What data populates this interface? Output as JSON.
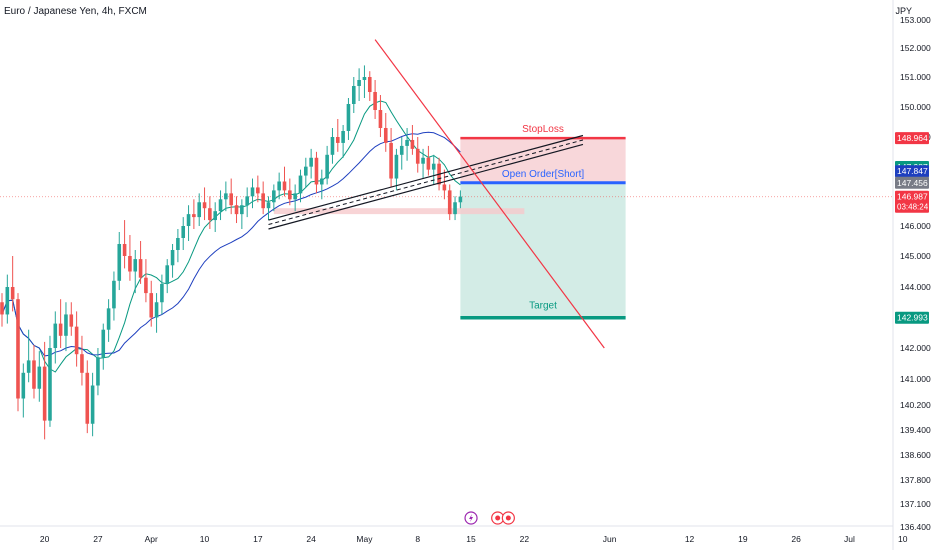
{
  "header": {
    "symbol_title": "Euro / Japanese Yen, 4h, FXCM",
    "currency": "JPY"
  },
  "colors": {
    "up": "#26a69a",
    "down": "#ef5350",
    "sma_fast": "#089981",
    "sma_slow": "#1e3fbf",
    "stop_zone": "#f8d7da",
    "target_zone": "#d3ece6",
    "entry": "#2962ff",
    "stop": "#f23645",
    "target": "#089981",
    "trendline": "#f23645",
    "support_zone": "#f6c9cc"
  },
  "chart_data": {
    "type": "candlestick",
    "symbol": "EUR/JPY",
    "timeframe": "4h",
    "y_axis": {
      "min": 136.4,
      "max": 153.0,
      "ticks": [
        {
          "v": 153.0,
          "label": "153.000"
        },
        {
          "v": 152.0,
          "label": "152.000"
        },
        {
          "v": 151.0,
          "label": "151.000"
        },
        {
          "v": 150.0,
          "label": "150.000"
        },
        {
          "v": 149.0,
          "label": "149.000"
        },
        {
          "v": 146.0,
          "label": "146.000"
        },
        {
          "v": 145.0,
          "label": "145.000"
        },
        {
          "v": 144.0,
          "label": "144.000"
        },
        {
          "v": 142.0,
          "label": "142.000"
        },
        {
          "v": 141.0,
          "label": "141.000"
        },
        {
          "v": 140.2,
          "label": "140.200"
        },
        {
          "v": 139.4,
          "label": "139.400"
        },
        {
          "v": 138.6,
          "label": "138.600"
        },
        {
          "v": 137.8,
          "label": "137.800"
        },
        {
          "v": 137.1,
          "label": "137.100"
        },
        {
          "v": 136.4,
          "label": "136.400"
        }
      ]
    },
    "x_axis": {
      "labels": [
        {
          "i": 8,
          "label": "20"
        },
        {
          "i": 18,
          "label": "27"
        },
        {
          "i": 28,
          "label": "Apr"
        },
        {
          "i": 38,
          "label": "10"
        },
        {
          "i": 48,
          "label": "17"
        },
        {
          "i": 58,
          "label": "24"
        },
        {
          "i": 68,
          "label": "May"
        },
        {
          "i": 78,
          "label": "8"
        },
        {
          "i": 88,
          "label": "15"
        },
        {
          "i": 98,
          "label": "22"
        },
        {
          "i": 114,
          "label": "Jun"
        },
        {
          "i": 129,
          "label": "12"
        },
        {
          "i": 139,
          "label": "19"
        },
        {
          "i": 149,
          "label": "26"
        },
        {
          "i": 159,
          "label": "Jul"
        },
        {
          "i": 169,
          "label": "10"
        }
      ]
    },
    "price_badges": [
      {
        "v": 148.964,
        "label": "148.964",
        "color": "#f23645"
      },
      {
        "v": 147.987,
        "label": "147.987",
        "color": "#089981"
      },
      {
        "v": 147.847,
        "label": "147.847",
        "color": "#1e3fbf"
      },
      {
        "v": 147.456,
        "label": "147.456",
        "color": "#787b86"
      },
      {
        "v": 146.987,
        "label": "146.987",
        "sub": "03:48:24",
        "color": "#f23645"
      },
      {
        "v": 142.993,
        "label": "142.993",
        "color": "#089981"
      }
    ],
    "position": {
      "direction": "short",
      "entry": 147.456,
      "stop": 148.964,
      "target": 142.993,
      "start_i": 86,
      "end_i": 117,
      "labels": {
        "stop": "StopLoss",
        "entry": "Open Order[Short]",
        "target": "Target"
      }
    },
    "close_line": 146.987,
    "downtrend_line": {
      "from": {
        "i": 70,
        "v": 152.3
      },
      "to": {
        "i": 113,
        "v": 142.0
      }
    },
    "rising_channel": {
      "upper": {
        "from": {
          "i": 50,
          "v": 146.2
        },
        "to": {
          "i": 109,
          "v": 149.05
        }
      },
      "lower": {
        "from": {
          "i": 50,
          "v": 145.9
        },
        "to": {
          "i": 109,
          "v": 148.75
        }
      }
    },
    "support_zone": {
      "from_i": 51,
      "to_i": 98,
      "top": 146.6,
      "bottom": 146.4
    },
    "event_icons": [
      {
        "i": 88,
        "icon": "lightning-icon"
      },
      {
        "i": 93,
        "icon": "flag-icon"
      },
      {
        "i": 95,
        "icon": "flag-icon"
      }
    ],
    "ohlc": [
      [
        143.5,
        143.8,
        142.7,
        143.1
      ],
      [
        143.1,
        144.4,
        142.8,
        144.0
      ],
      [
        144.0,
        145.0,
        143.2,
        143.6
      ],
      [
        143.6,
        143.8,
        140.0,
        140.4
      ],
      [
        140.4,
        141.5,
        139.8,
        141.2
      ],
      [
        141.2,
        142.6,
        140.9,
        141.6
      ],
      [
        141.6,
        142.1,
        140.4,
        140.7
      ],
      [
        140.7,
        141.9,
        140.3,
        141.4
      ],
      [
        141.4,
        142.2,
        139.1,
        139.7
      ],
      [
        139.7,
        142.4,
        139.5,
        142.0
      ],
      [
        142.0,
        143.2,
        141.5,
        142.8
      ],
      [
        142.8,
        143.6,
        142.0,
        142.4
      ],
      [
        142.4,
        143.5,
        141.9,
        143.1
      ],
      [
        143.1,
        143.5,
        142.4,
        142.7
      ],
      [
        142.7,
        143.2,
        141.4,
        141.8
      ],
      [
        141.8,
        142.4,
        140.8,
        141.2
      ],
      [
        141.2,
        141.6,
        139.3,
        139.6
      ],
      [
        139.6,
        141.2,
        139.2,
        140.8
      ],
      [
        140.8,
        142.0,
        140.5,
        141.7
      ],
      [
        141.7,
        142.8,
        141.3,
        142.6
      ],
      [
        142.6,
        143.6,
        142.2,
        143.3
      ],
      [
        143.3,
        144.5,
        142.9,
        144.2
      ],
      [
        144.2,
        145.8,
        143.9,
        145.4
      ],
      [
        145.4,
        146.2,
        144.6,
        145.0
      ],
      [
        145.0,
        145.7,
        144.2,
        144.5
      ],
      [
        144.5,
        145.2,
        143.8,
        144.9
      ],
      [
        144.9,
        145.5,
        144.1,
        144.3
      ],
      [
        144.3,
        144.9,
        143.5,
        143.8
      ],
      [
        143.8,
        144.2,
        142.7,
        143.0
      ],
      [
        143.0,
        143.8,
        142.5,
        143.5
      ],
      [
        143.5,
        144.4,
        143.1,
        144.1
      ],
      [
        144.1,
        144.9,
        143.8,
        144.7
      ],
      [
        144.7,
        145.4,
        144.3,
        145.2
      ],
      [
        145.2,
        145.9,
        144.8,
        145.6
      ],
      [
        145.6,
        146.3,
        145.2,
        146.0
      ],
      [
        146.0,
        146.7,
        145.5,
        146.4
      ],
      [
        146.4,
        146.9,
        145.9,
        146.3
      ],
      [
        146.3,
        147.1,
        146.0,
        146.8
      ],
      [
        146.8,
        147.3,
        146.2,
        146.6
      ],
      [
        146.6,
        147.0,
        145.9,
        146.2
      ],
      [
        146.2,
        146.8,
        145.8,
        146.5
      ],
      [
        146.5,
        147.2,
        146.2,
        146.9
      ],
      [
        146.9,
        147.5,
        146.5,
        147.1
      ],
      [
        147.1,
        147.6,
        146.4,
        146.7
      ],
      [
        146.7,
        147.0,
        146.1,
        146.4
      ],
      [
        146.4,
        146.9,
        145.9,
        146.7
      ],
      [
        146.7,
        147.3,
        146.3,
        147.0
      ],
      [
        147.0,
        147.6,
        146.6,
        147.3
      ],
      [
        147.3,
        147.7,
        146.8,
        147.1
      ],
      [
        147.1,
        147.5,
        146.4,
        146.6
      ],
      [
        146.6,
        147.0,
        146.2,
        146.8
      ],
      [
        146.8,
        147.4,
        146.5,
        147.2
      ],
      [
        147.2,
        147.8,
        146.9,
        147.5
      ],
      [
        147.5,
        148.0,
        147.0,
        147.2
      ],
      [
        147.2,
        147.6,
        146.7,
        146.9
      ],
      [
        146.9,
        147.4,
        146.5,
        147.1
      ],
      [
        147.1,
        147.9,
        146.8,
        147.7
      ],
      [
        147.7,
        148.3,
        147.3,
        148.0
      ],
      [
        148.0,
        148.6,
        147.6,
        148.3
      ],
      [
        148.3,
        148.5,
        147.1,
        147.4
      ],
      [
        147.4,
        147.9,
        146.9,
        147.6
      ],
      [
        147.6,
        148.7,
        147.4,
        148.4
      ],
      [
        148.4,
        149.3,
        148.1,
        149.0
      ],
      [
        149.0,
        149.6,
        148.5,
        148.8
      ],
      [
        148.8,
        149.4,
        148.3,
        149.2
      ],
      [
        149.2,
        150.3,
        148.9,
        150.1
      ],
      [
        150.1,
        151.0,
        149.8,
        150.7
      ],
      [
        150.7,
        151.3,
        150.2,
        150.9
      ],
      [
        150.9,
        151.4,
        150.3,
        151.0
      ],
      [
        151.0,
        151.2,
        150.2,
        150.5
      ],
      [
        150.5,
        150.9,
        149.6,
        149.9
      ],
      [
        149.9,
        150.4,
        149.0,
        149.3
      ],
      [
        149.3,
        149.8,
        148.5,
        148.8
      ],
      [
        148.8,
        149.3,
        147.3,
        147.6
      ],
      [
        147.6,
        148.6,
        147.2,
        148.4
      ],
      [
        148.4,
        149.0,
        147.9,
        148.7
      ],
      [
        148.7,
        149.3,
        148.2,
        148.9
      ],
      [
        148.9,
        149.4,
        148.4,
        148.6
      ],
      [
        148.6,
        149.0,
        147.8,
        148.1
      ],
      [
        148.1,
        148.6,
        147.6,
        148.3
      ],
      [
        148.3,
        148.7,
        147.7,
        147.9
      ],
      [
        147.9,
        148.4,
        147.4,
        148.1
      ],
      [
        148.1,
        148.3,
        147.2,
        147.4
      ],
      [
        147.4,
        147.9,
        146.9,
        147.2
      ],
      [
        147.2,
        147.4,
        146.2,
        146.4
      ],
      [
        146.4,
        147.0,
        146.2,
        146.8
      ],
      [
        146.8,
        147.2,
        146.6,
        146.99
      ]
    ]
  }
}
